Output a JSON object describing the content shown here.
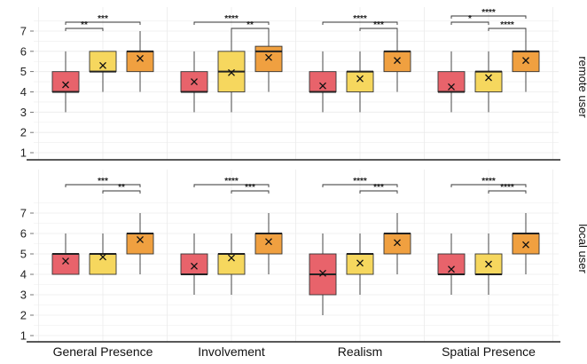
{
  "chart_data": {
    "type": "box",
    "categories": [
      "General Presence",
      "Involvement",
      "Realism",
      "Spatial Presence"
    ],
    "groups_colors": [
      "#e8636b",
      "#f6d75e",
      "#f0a040"
    ],
    "y_ticks": [
      "1",
      "2",
      "3",
      "4",
      "5",
      "6",
      "7"
    ],
    "ylim": [
      0.7,
      7.7
    ],
    "grid": true,
    "panels": [
      {
        "label": "remote user",
        "categories": [
          {
            "boxes": [
              {
                "min": 3,
                "q1": 4,
                "median": 4,
                "q3": 5,
                "max": 6,
                "mean": 4.35
              },
              {
                "min": 4,
                "q1": 5,
                "median": 5,
                "q3": 6,
                "max": 6,
                "mean": 5.3
              },
              {
                "min": 4,
                "q1": 5,
                "median": 6,
                "q3": 6,
                "max": 7,
                "mean": 5.65
              }
            ],
            "brackets": [
              {
                "from": 0,
                "to": 1,
                "label": "**"
              },
              {
                "from": 0,
                "to": 2,
                "label": "***"
              }
            ]
          },
          {
            "boxes": [
              {
                "min": 3,
                "q1": 4,
                "median": 4,
                "q3": 5,
                "max": 6,
                "mean": 4.5
              },
              {
                "min": 3,
                "q1": 4,
                "median": 5,
                "q3": 6,
                "max": 7,
                "mean": 4.95
              },
              {
                "min": 4,
                "q1": 5,
                "median": 6,
                "q3": 6.25,
                "max": 7,
                "mean": 5.7
              }
            ],
            "brackets": [
              {
                "from": 1,
                "to": 2,
                "label": "**"
              },
              {
                "from": 0,
                "to": 2,
                "label": "****"
              }
            ]
          },
          {
            "boxes": [
              {
                "min": 3,
                "q1": 4,
                "median": 4,
                "q3": 5,
                "max": 6,
                "mean": 4.3
              },
              {
                "min": 3,
                "q1": 4,
                "median": 5,
                "q3": 5,
                "max": 6,
                "mean": 4.65
              },
              {
                "min": 4,
                "q1": 5,
                "median": 6,
                "q3": 6,
                "max": 7,
                "mean": 5.55
              }
            ],
            "brackets": [
              {
                "from": 1,
                "to": 2,
                "label": "***"
              },
              {
                "from": 0,
                "to": 2,
                "label": "****"
              }
            ]
          },
          {
            "boxes": [
              {
                "min": 3,
                "q1": 4,
                "median": 4,
                "q3": 5,
                "max": 6,
                "mean": 4.25
              },
              {
                "min": 3,
                "q1": 4,
                "median": 5,
                "q3": 5,
                "max": 6,
                "mean": 4.7
              },
              {
                "min": 4,
                "q1": 5,
                "median": 6,
                "q3": 6,
                "max": 7,
                "mean": 5.55
              }
            ],
            "brackets": [
              {
                "from": 1,
                "to": 2,
                "label": "****"
              },
              {
                "from": 0,
                "to": 1,
                "label": "*"
              },
              {
                "from": 0,
                "to": 2,
                "label": "****"
              }
            ]
          }
        ]
      },
      {
        "label": "local user",
        "categories": [
          {
            "boxes": [
              {
                "min": 4,
                "q1": 4,
                "median": 5,
                "q3": 5,
                "max": 6,
                "mean": 4.65
              },
              {
                "min": 4,
                "q1": 4,
                "median": 5,
                "q3": 5,
                "max": 6,
                "mean": 4.85
              },
              {
                "min": 4,
                "q1": 5,
                "median": 6,
                "q3": 6,
                "max": 7,
                "mean": 5.7
              }
            ],
            "brackets": [
              {
                "from": 1,
                "to": 2,
                "label": "**"
              },
              {
                "from": 0,
                "to": 2,
                "label": "***"
              }
            ]
          },
          {
            "boxes": [
              {
                "min": 3,
                "q1": 4,
                "median": 4,
                "q3": 5,
                "max": 6,
                "mean": 4.4
              },
              {
                "min": 3,
                "q1": 4,
                "median": 5,
                "q3": 5,
                "max": 6,
                "mean": 4.8
              },
              {
                "min": 4,
                "q1": 5,
                "median": 6,
                "q3": 6,
                "max": 7,
                "mean": 5.6
              }
            ],
            "brackets": [
              {
                "from": 1,
                "to": 2,
                "label": "***"
              },
              {
                "from": 0,
                "to": 2,
                "label": "****"
              }
            ]
          },
          {
            "boxes": [
              {
                "min": 2,
                "q1": 3,
                "median": 4,
                "q3": 5,
                "max": 6,
                "mean": 4.05
              },
              {
                "min": 3,
                "q1": 4,
                "median": 5,
                "q3": 5,
                "max": 6,
                "mean": 4.55
              },
              {
                "min": 4,
                "q1": 5,
                "median": 6,
                "q3": 6,
                "max": 7,
                "mean": 5.55
              }
            ],
            "brackets": [
              {
                "from": 1,
                "to": 2,
                "label": "***"
              },
              {
                "from": 0,
                "to": 2,
                "label": "****"
              }
            ]
          },
          {
            "boxes": [
              {
                "min": 3,
                "q1": 4,
                "median": 4,
                "q3": 5,
                "max": 6,
                "mean": 4.25
              },
              {
                "min": 3,
                "q1": 4,
                "median": 4,
                "q3": 5,
                "max": 6,
                "mean": 4.5
              },
              {
                "min": 4,
                "q1": 5,
                "median": 6,
                "q3": 6,
                "max": 7,
                "mean": 5.45
              }
            ],
            "brackets": [
              {
                "from": 1,
                "to": 2,
                "label": "****"
              },
              {
                "from": 0,
                "to": 2,
                "label": "****"
              }
            ]
          }
        ]
      }
    ]
  }
}
